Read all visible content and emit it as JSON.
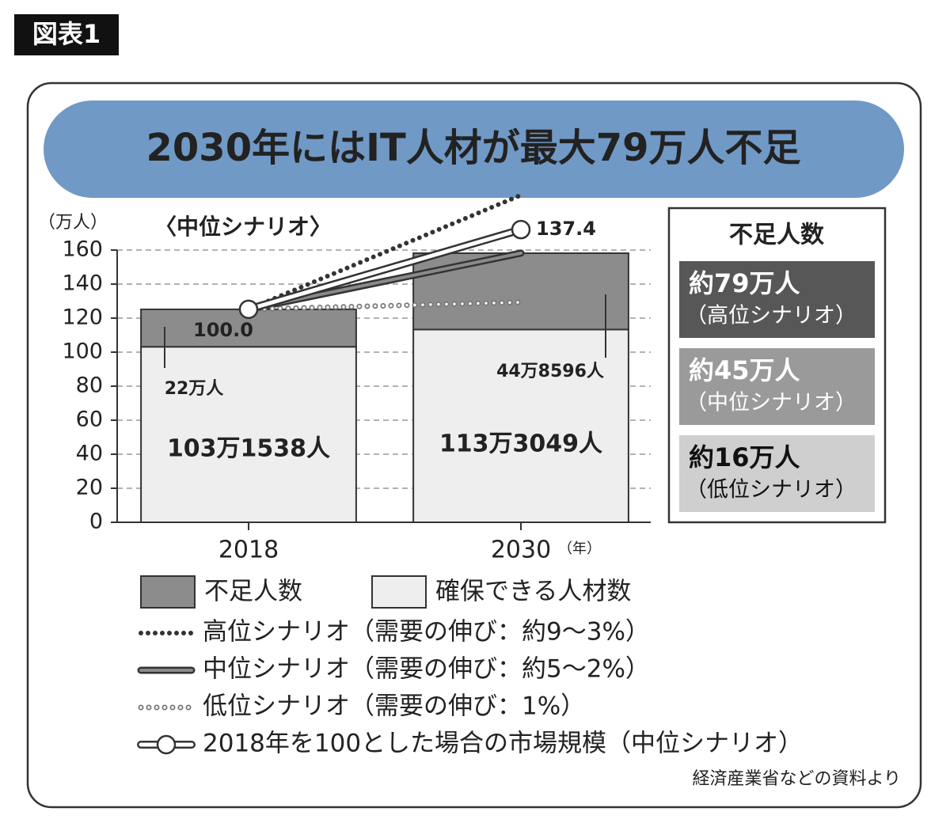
{
  "figure_label": "図表1",
  "chart_data": {
    "type": "bar",
    "stacked": true,
    "title": "2030年にはIT人材が最大79万人不足",
    "subtitle": "〈中位シナリオ〉",
    "y_unit": "（万人）",
    "x_unit": "（年）",
    "source": "経済産業省などの資料より",
    "categories": [
      "2018",
      "2030"
    ],
    "ylim": [
      0,
      160
    ],
    "yticks": [
      0,
      20,
      40,
      60,
      80,
      100,
      120,
      140,
      160
    ],
    "y2lim": [
      0,
      127.8
    ],
    "grid": true,
    "series": [
      {
        "name": "確保できる人材数",
        "kind": "bar",
        "color": "#eeeeee",
        "values": [
          103.1538,
          113.3049
        ],
        "value_labels": [
          "103万1538人",
          "113万3049人"
        ]
      },
      {
        "name": "不足人数",
        "kind": "bar",
        "color": "#8c8c8c",
        "values": [
          22,
          44.8596
        ],
        "value_labels": [
          "22万人",
          "44万8596人"
        ]
      },
      {
        "name": "高位シナリオ（需要の伸び：約9～3%）",
        "kind": "line",
        "style": "dotted",
        "color": "#333333",
        "values": [
          125.2,
          192.3
        ]
      },
      {
        "name": "中位シナリオ（需要の伸び：約5～2%）",
        "kind": "line",
        "style": "double",
        "color": "#333333",
        "values": [
          125.2,
          158.2
        ]
      },
      {
        "name": "低位シナリオ（需要の伸び：1%）",
        "kind": "line",
        "style": "small-dots",
        "color": "#777777",
        "values": [
          125.2,
          129.3
        ]
      },
      {
        "name": "2018年を100とした場合の市場規模（中位シナリオ）",
        "kind": "line",
        "style": "marker",
        "axis": "y2",
        "color": "#333333",
        "values": [
          100.0,
          137.4
        ],
        "value_labels": [
          "100.0",
          "137.4"
        ]
      }
    ],
    "shortage_box": {
      "title": "不足人数",
      "items": [
        {
          "amount": "約79万人",
          "scenario": "（高位シナリオ）",
          "color": "#575757"
        },
        {
          "amount": "約45万人",
          "scenario": "（中位シナリオ）",
          "color": "#9a9a9a"
        },
        {
          "amount": "約16万人",
          "scenario": "（低位シナリオ）",
          "color": "#cfcfcf"
        }
      ]
    }
  }
}
